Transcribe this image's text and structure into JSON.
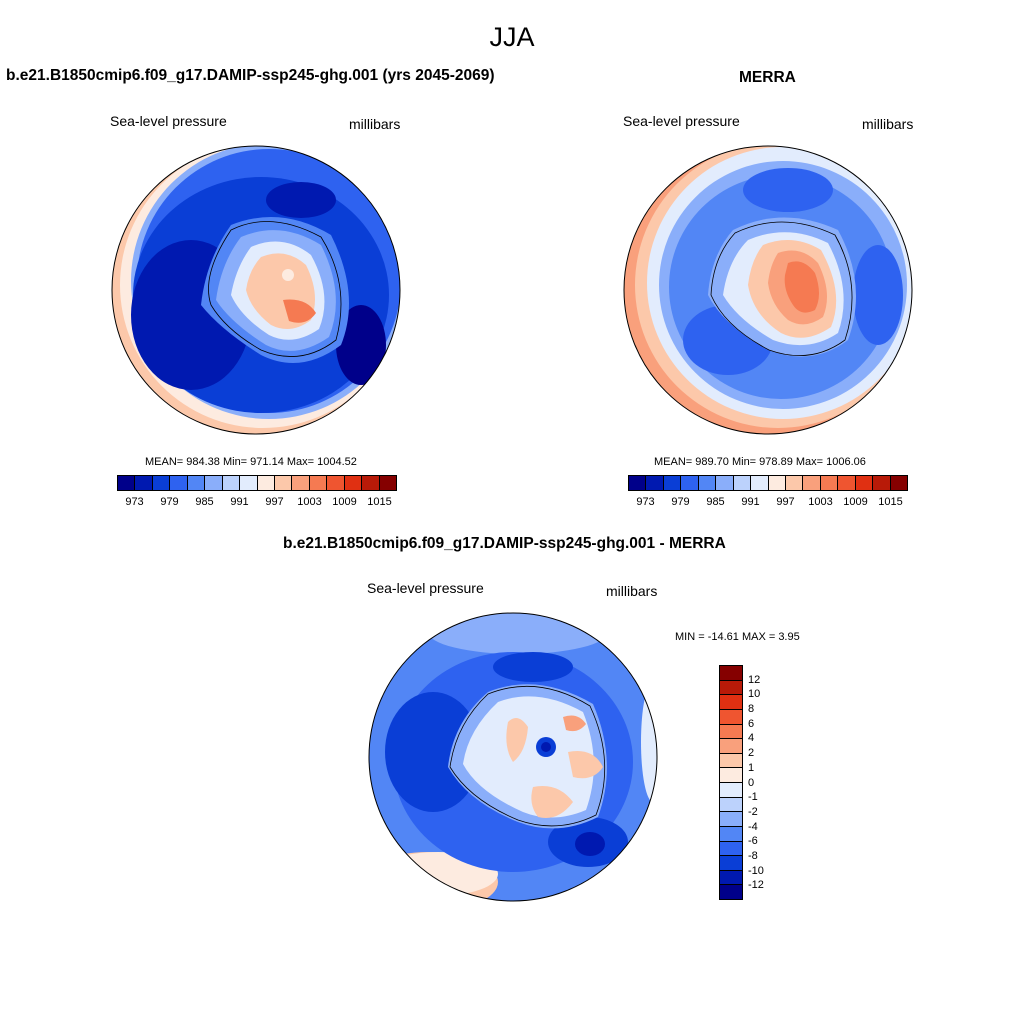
{
  "figure": {
    "season": "JJA"
  },
  "panels": {
    "model": {
      "title": "b.e21.B1850cmip6.f09_g17.DAMIP-ssp245-ghg.001 (yrs 2045-2069)",
      "variable": "Sea-level pressure",
      "units": "millibars",
      "stats": "MEAN= 984.38  Min= 971.14  Max= 1004.52"
    },
    "obs": {
      "title": "MERRA",
      "variable": "Sea-level pressure",
      "units": "millibars",
      "stats": "MEAN= 989.70  Min= 978.89  Max= 1006.06"
    },
    "diff": {
      "title": "b.e21.B1850cmip6.f09_g17.DAMIP-ssp245-ghg.001 - MERRA",
      "variable": "Sea-level pressure",
      "units": "millibars",
      "stats": "MIN = -14.61 MAX =   3.95"
    }
  },
  "colorbars": {
    "abs_colors": [
      "#00008a",
      "#0019b0",
      "#0a3ed6",
      "#2e62f0",
      "#5286f5",
      "#8aaefa",
      "#bcd2fc",
      "#e2ecfd",
      "#fdebe0",
      "#fcc8aa",
      "#f9a07c",
      "#f57a52",
      "#ef5530",
      "#e03012",
      "#b81a08",
      "#850000"
    ],
    "abs_tick_labels": [
      "973",
      "979",
      "985",
      "991",
      "997",
      "1003",
      "1009",
      "1015"
    ],
    "diff_colors": [
      "#850000",
      "#b81a08",
      "#e03012",
      "#ef5530",
      "#f57a52",
      "#f9a07c",
      "#fcc8aa",
      "#fdebe0",
      "#e2ecfd",
      "#bcd2fc",
      "#8aaefa",
      "#5286f5",
      "#2e62f0",
      "#0a3ed6",
      "#0019b0",
      "#00008a"
    ],
    "diff_tick_labels": [
      "12",
      "10",
      "8",
      "6",
      "4",
      "2",
      "1",
      "0",
      "-1",
      "-2",
      "-4",
      "-6",
      "-8",
      "-10",
      "-12"
    ]
  }
}
